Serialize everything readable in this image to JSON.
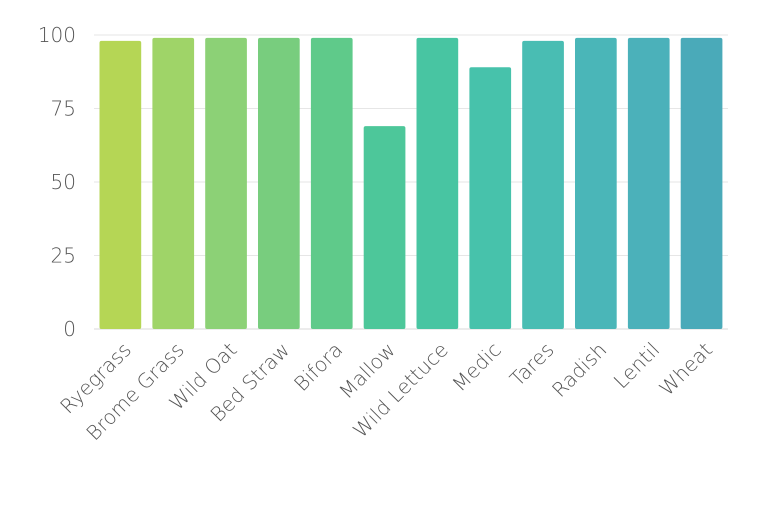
{
  "chart_data": {
    "type": "bar",
    "title": "",
    "xlabel": "",
    "ylabel": "",
    "categories": [
      "Ryegrass",
      "Brome Grass",
      "Wild Oat",
      "Bed Straw",
      "Bifora",
      "Mallow",
      "Wild Lettuce",
      "Medic",
      "Tares",
      "Radish",
      "Lentil",
      "Wheat"
    ],
    "values": [
      98,
      99,
      99,
      99,
      99,
      69,
      99,
      89,
      98,
      99,
      99,
      99
    ],
    "ylim": [
      0,
      100
    ],
    "yticks": [
      0,
      25,
      50,
      75,
      100
    ],
    "grid": true,
    "legend": "none",
    "colors": [
      "#b5d655",
      "#9fd468",
      "#8cd176",
      "#78cd7e",
      "#5fca8a",
      "#4dc79a",
      "#48c5a2",
      "#47c2ab",
      "#49bdb3",
      "#4ab6b8",
      "#4bb1ba",
      "#4aaab9"
    ]
  }
}
